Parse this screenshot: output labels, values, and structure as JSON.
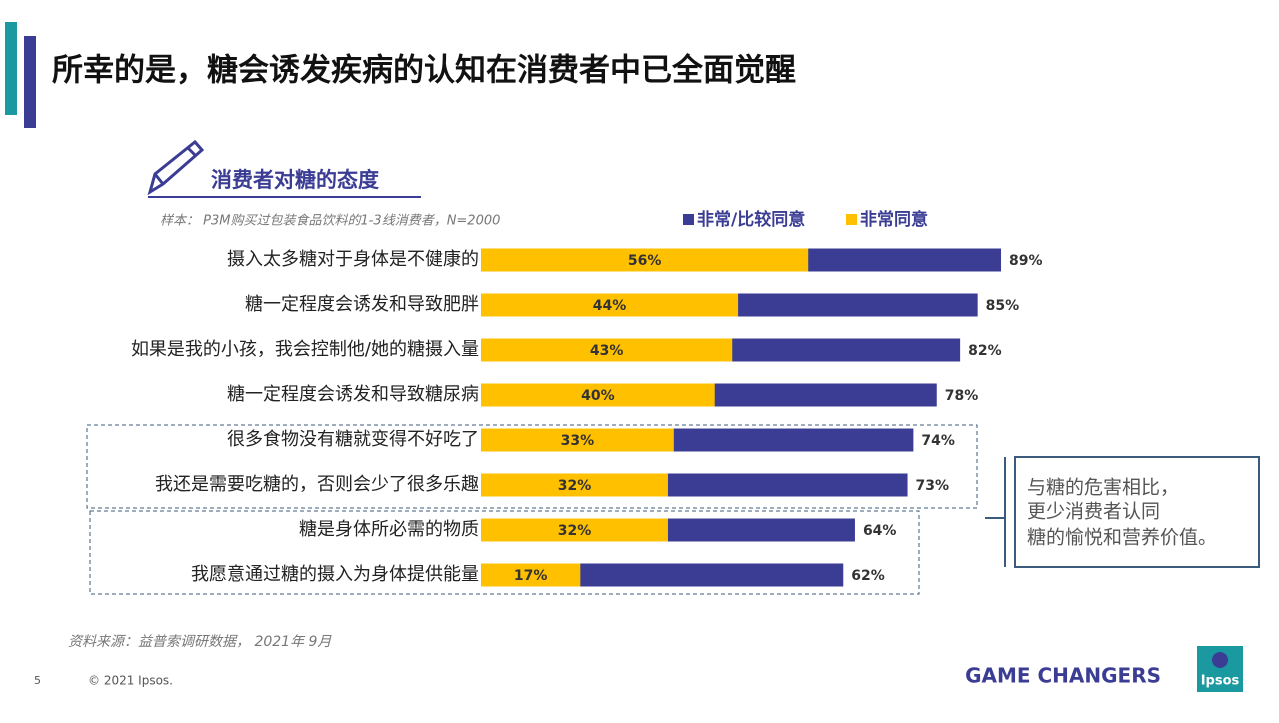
{
  "title": "所幸的是，糖会诱发疾病的认知在消费者中已全面觉醒",
  "chart_data": {
    "type": "overlap-bar",
    "title": "消费者对糖的态度",
    "subtitle": "样本： P3M购买过包装食品饮料的1-3线消费者，N=2000",
    "categories": [
      "摄入太多糖对于身体是不健康的",
      "糖一定程度会诱发和导致肥胖",
      "如果是我的小孩，我会控制他/她的糖摄入量",
      "糖一定程度会诱发和导致糖尿病",
      "很多食物没有糖就变得不好吃了",
      "我还是需要吃糖的，否则会少了很多乐趣",
      "糖是身体所必需的物质",
      "我愿意通过糖的摄入为身体提供能量"
    ],
    "series": [
      {
        "name": "非常/比较同意",
        "color": "#3b3d94",
        "values": [
          89,
          85,
          82,
          78,
          74,
          73,
          64,
          62
        ],
        "value_labels": [
          "89%",
          "85%",
          "82%",
          "78%",
          "74%",
          "73%",
          "64%",
          "62%"
        ]
      },
      {
        "name": "非常同意",
        "color": "#ffc000",
        "values": [
          56,
          44,
          43,
          40,
          33,
          32,
          32,
          17
        ],
        "value_labels": [
          "56%",
          "44%",
          "43%",
          "40%",
          "33%",
          "32%",
          "32%",
          "17%"
        ]
      }
    ],
    "source": "资料来源：益普索调研数据， 2021年 9月"
  },
  "callout": [
    "与糖的危害相比，",
    "更少消费者认同",
    "糖的愉悦和营养价值。"
  ],
  "footer": {
    "page": "5",
    "copyright": "© 2021 Ipsos.",
    "tagline": "GAME CHANGERS",
    "logo": "Ipsos"
  }
}
